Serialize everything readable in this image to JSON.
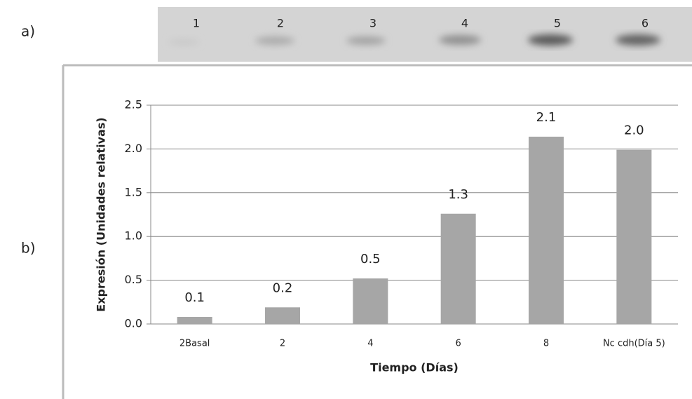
{
  "panel_labels": [
    "a)",
    "b)"
  ],
  "gel": {
    "lanes": [
      "1",
      "2",
      "3",
      "4",
      "5",
      "6"
    ]
  },
  "chart_data": {
    "type": "bar",
    "y_label": "Expresión (Unidades relativas)",
    "x_label": "Tiempo (Días)",
    "categories": [
      "2Basal",
      "2",
      "4",
      "6",
      "8",
      "Nc cdh(Día 5)"
    ],
    "values": [
      0.08,
      0.19,
      0.52,
      1.26,
      2.14,
      1.99
    ],
    "value_labels": [
      "0.1",
      "0.2",
      "0.5",
      "1.3",
      "2.1",
      "2.0"
    ],
    "color": "#a6a6a6",
    "ylim": [
      0,
      2.5
    ],
    "yticks": [
      {
        "value": 0,
        "label": "0.0"
      },
      0.5,
      {
        "value": 1,
        "label": "1.0"
      },
      1.5,
      {
        "value": 2,
        "label": "2.0"
      },
      2.5
    ],
    "grid": true
  }
}
